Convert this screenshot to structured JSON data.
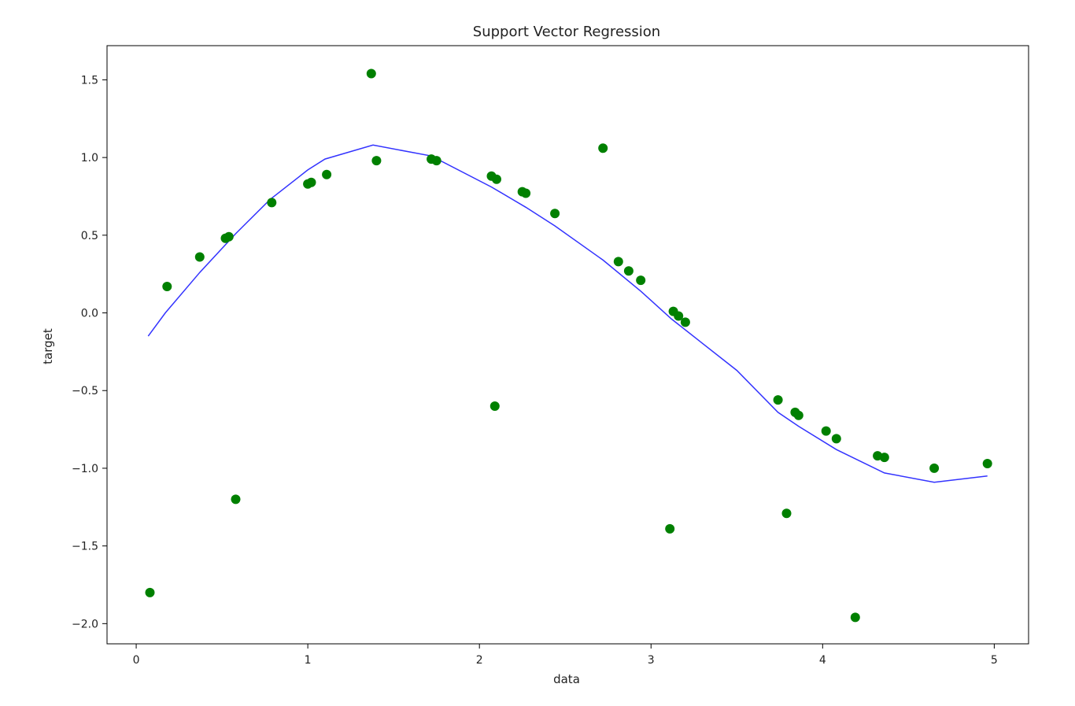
{
  "chart_data": {
    "type": "scatter",
    "title": "Support Vector Regression",
    "xlabel": "data",
    "ylabel": "target",
    "xlim": [
      -0.17,
      5.2
    ],
    "ylim": [
      -2.13,
      1.72
    ],
    "xticks": [
      0,
      1,
      2,
      3,
      4,
      5
    ],
    "xtick_labels": [
      "0",
      "1",
      "2",
      "3",
      "4",
      "5"
    ],
    "yticks": [
      -2.0,
      -1.5,
      -1.0,
      -0.5,
      0.0,
      0.5,
      1.0,
      1.5
    ],
    "ytick_labels": [
      "−2.0",
      "−1.5",
      "−1.0",
      "−0.5",
      "0.0",
      "0.5",
      "1.0",
      "1.5"
    ],
    "grid": false,
    "series": [
      {
        "kind": "scatter",
        "color": "#008000",
        "x": [
          0.08,
          0.18,
          0.37,
          0.52,
          0.54,
          0.58,
          0.79,
          1.0,
          1.02,
          1.11,
          1.37,
          1.4,
          1.72,
          1.75,
          2.07,
          2.09,
          2.1,
          2.25,
          2.27,
          2.44,
          2.72,
          2.81,
          2.87,
          2.94,
          3.11,
          3.13,
          3.16,
          3.2,
          3.74,
          3.79,
          3.84,
          3.86,
          4.02,
          4.08,
          4.19,
          4.32,
          4.36,
          4.65,
          4.96
        ],
        "y": [
          -1.8,
          0.17,
          0.36,
          0.48,
          0.49,
          -1.2,
          0.71,
          0.83,
          0.84,
          0.89,
          1.54,
          0.98,
          0.99,
          0.98,
          0.88,
          -0.6,
          0.86,
          0.78,
          0.77,
          0.64,
          1.06,
          0.33,
          0.27,
          0.21,
          -1.39,
          0.01,
          -0.02,
          -0.06,
          -0.56,
          -1.29,
          -0.64,
          -0.66,
          -0.76,
          -0.81,
          -1.96,
          -0.92,
          -0.93,
          -1.0,
          -0.97
        ]
      },
      {
        "kind": "line",
        "color": "#3333ff",
        "x": [
          0.07,
          0.17,
          0.37,
          0.58,
          0.78,
          1.0,
          1.1,
          1.38,
          1.72,
          2.07,
          2.27,
          2.44,
          2.72,
          2.94,
          3.12,
          3.5,
          3.74,
          3.86,
          4.08,
          4.36,
          4.65,
          4.96
        ],
        "y": [
          -0.15,
          0.0,
          0.26,
          0.51,
          0.73,
          0.92,
          0.99,
          1.08,
          1.01,
          0.81,
          0.68,
          0.56,
          0.34,
          0.14,
          -0.04,
          -0.37,
          -0.64,
          -0.73,
          -0.88,
          -1.03,
          -1.09,
          -1.05
        ]
      }
    ]
  }
}
